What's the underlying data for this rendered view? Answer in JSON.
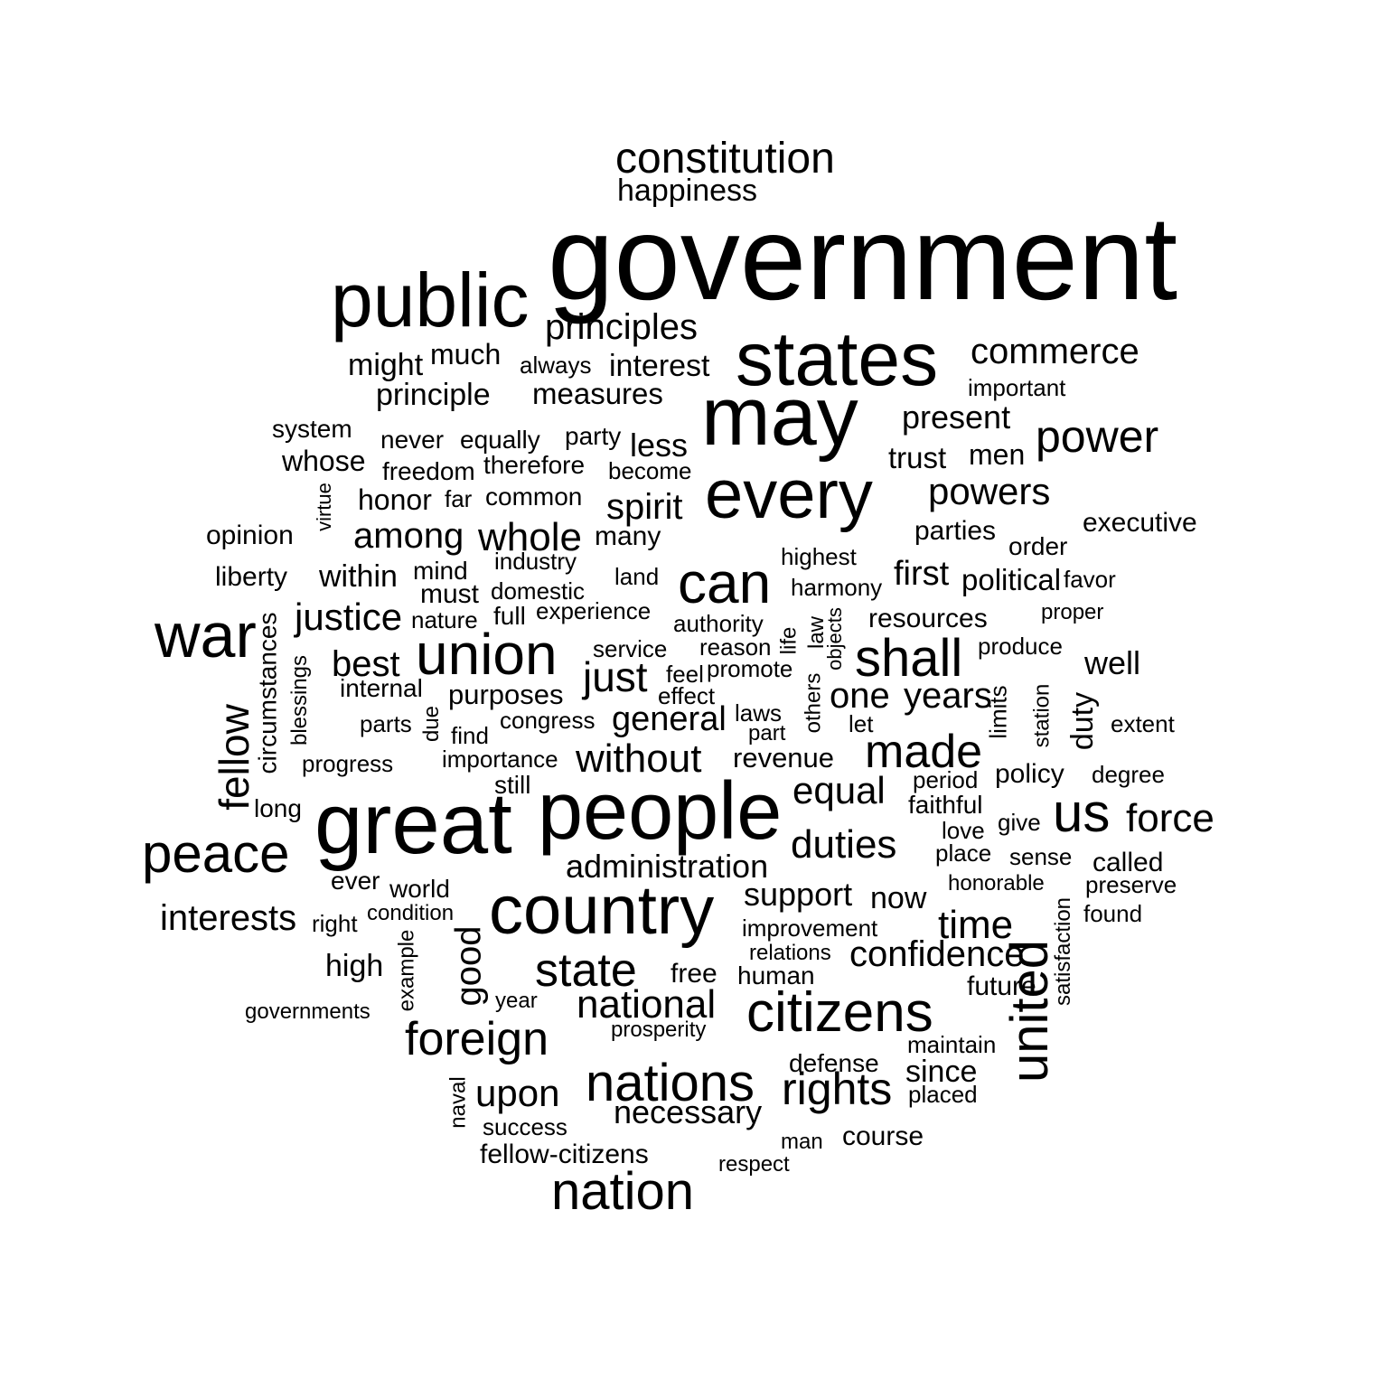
{
  "colors": {
    "background": "#ffffff",
    "text": "#000000"
  },
  "words": [
    "government",
    "people",
    "great",
    "may",
    "states",
    "public",
    "every",
    "country",
    "union",
    "war",
    "can",
    "citizens",
    "peace",
    "united",
    "nations",
    "nation",
    "constitution",
    "shall",
    "made",
    "foreign",
    "state",
    "national",
    "rights",
    "us",
    "power",
    "principles",
    "commerce",
    "powers",
    "confidence",
    "time",
    "duties",
    "equal",
    "without",
    "general",
    "just",
    "whole",
    "justice",
    "force",
    "support",
    "interests",
    "best",
    "among",
    "spirit",
    "fellow",
    "good",
    "administration",
    "necessary",
    "upon",
    "one",
    "years",
    "first",
    "political",
    "present",
    "interest",
    "measures",
    "principle",
    "happiness",
    "might",
    "much",
    "less",
    "trust",
    "men",
    "executive",
    "opinion",
    "liberty",
    "within",
    "must",
    "honor",
    "whose",
    "system",
    "high",
    "free",
    "human",
    "resources",
    "parties",
    "revenue",
    "policy",
    "since",
    "course",
    "now",
    "well",
    "called",
    "duty",
    "circumstances",
    "future",
    "fellow-citizens",
    "purposes",
    "many",
    "mind",
    "always",
    "never",
    "equally",
    "party",
    "freedom",
    "therefore",
    "become",
    "common",
    "far",
    "important",
    "order",
    "highest",
    "harmony",
    "land",
    "industry",
    "domestic",
    "nature",
    "full",
    "experience",
    "authority",
    "service",
    "reason",
    "feel",
    "promote",
    "effect",
    "internal",
    "congress",
    "find",
    "parts",
    "importance",
    "progress",
    "laws",
    "part",
    "let",
    "extent",
    "degree",
    "period",
    "faithful",
    "love",
    "give",
    "place",
    "sense",
    "honorable",
    "preserve",
    "found",
    "improvement",
    "relations",
    "maintain",
    "placed",
    "defense",
    "man",
    "respect",
    "success",
    "prosperity",
    "year",
    "governments",
    "right",
    "condition",
    "world",
    "ever",
    "long",
    "still",
    "favor",
    "proper",
    "produce",
    "virtue",
    "life",
    "law",
    "objects",
    "others",
    "blessings",
    "due",
    "limits",
    "station",
    "satisfaction",
    "example",
    "naval"
  ]
}
